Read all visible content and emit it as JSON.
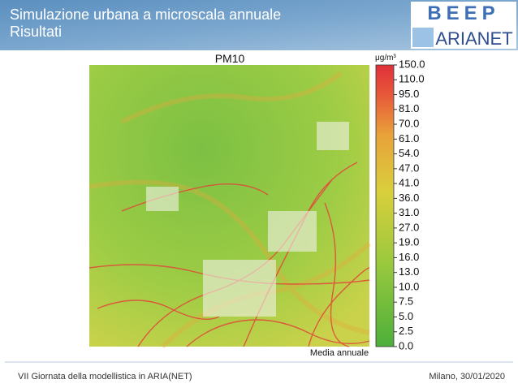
{
  "header": {
    "title_line1": "Simulazione urbana a microscala annuale",
    "title_line2": "Risultati",
    "logo_top": "BEEP",
    "logo_bottom": "ARIANET"
  },
  "map": {
    "title": "PM10",
    "unit": "μg/m³",
    "caption": "Media annuale",
    "colorbar_labels": [
      "150.0",
      "110.0",
      "95.0",
      "81.0",
      "70.0",
      "61.0",
      "54.0",
      "47.0",
      "41.0",
      "36.0",
      "31.0",
      "27.0",
      "19.0",
      "16.0",
      "13.0",
      "10.0",
      "7.5",
      "5.0",
      "2.5",
      "0.0"
    ]
  },
  "footer": {
    "left": "VII Giornata della modellistica in ARIA(NET)",
    "right": "Milano, 30/01/2020"
  }
}
